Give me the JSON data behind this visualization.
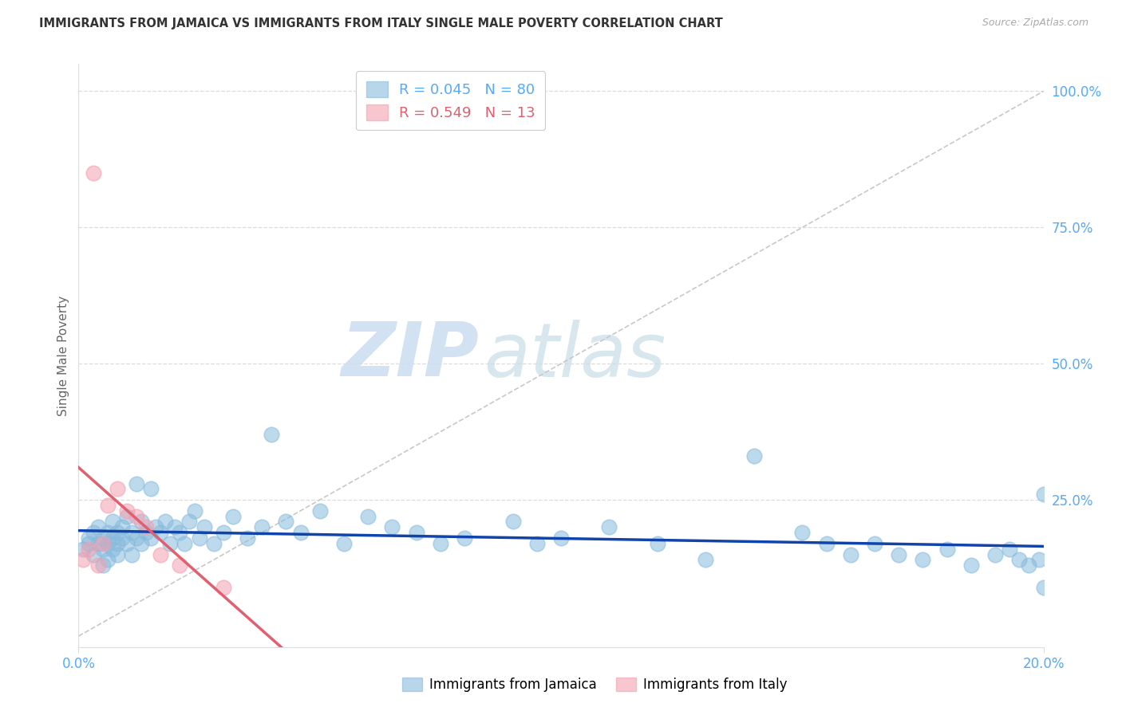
{
  "title": "IMMIGRANTS FROM JAMAICA VS IMMIGRANTS FROM ITALY SINGLE MALE POVERTY CORRELATION CHART",
  "source": "Source: ZipAtlas.com",
  "ylabel": "Single Male Poverty",
  "xlim": [
    0.0,
    0.2
  ],
  "ylim": [
    -0.02,
    1.05
  ],
  "watermark_zip": "ZIP",
  "watermark_atlas": "atlas",
  "legend_jamaica_R": 0.045,
  "legend_jamaica_N": 80,
  "legend_italy_R": 0.549,
  "legend_italy_N": 13,
  "jamaica_color": "#88bbdd",
  "italy_color": "#f4a0b0",
  "jamaica_line_color": "#1144aa",
  "italy_line_color": "#e06070",
  "diagonal_color": "#c8c8c8",
  "grid_color": "#dddddd",
  "right_tick_color": "#55aaff",
  "xtick_color": "#55aaff",
  "jamaica_x": [
    0.001,
    0.002,
    0.002,
    0.003,
    0.003,
    0.004,
    0.004,
    0.005,
    0.005,
    0.005,
    0.006,
    0.006,
    0.006,
    0.007,
    0.007,
    0.007,
    0.008,
    0.008,
    0.008,
    0.009,
    0.009,
    0.01,
    0.01,
    0.011,
    0.011,
    0.012,
    0.012,
    0.013,
    0.013,
    0.014,
    0.015,
    0.015,
    0.016,
    0.017,
    0.018,
    0.019,
    0.02,
    0.021,
    0.022,
    0.023,
    0.024,
    0.025,
    0.026,
    0.028,
    0.03,
    0.032,
    0.035,
    0.038,
    0.04,
    0.043,
    0.046,
    0.05,
    0.055,
    0.06,
    0.065,
    0.07,
    0.075,
    0.08,
    0.09,
    0.095,
    0.1,
    0.11,
    0.12,
    0.13,
    0.14,
    0.15,
    0.155,
    0.16,
    0.165,
    0.17,
    0.175,
    0.18,
    0.185,
    0.19,
    0.193,
    0.195,
    0.197,
    0.199,
    0.2,
    0.2
  ],
  "jamaica_y": [
    0.16,
    0.18,
    0.17,
    0.19,
    0.15,
    0.2,
    0.17,
    0.18,
    0.13,
    0.16,
    0.19,
    0.17,
    0.14,
    0.18,
    0.16,
    0.21,
    0.17,
    0.19,
    0.15,
    0.18,
    0.2,
    0.17,
    0.22,
    0.19,
    0.15,
    0.28,
    0.18,
    0.17,
    0.21,
    0.19,
    0.18,
    0.27,
    0.2,
    0.19,
    0.21,
    0.17,
    0.2,
    0.19,
    0.17,
    0.21,
    0.23,
    0.18,
    0.2,
    0.17,
    0.19,
    0.22,
    0.18,
    0.2,
    0.37,
    0.21,
    0.19,
    0.23,
    0.17,
    0.22,
    0.2,
    0.19,
    0.17,
    0.18,
    0.21,
    0.17,
    0.18,
    0.2,
    0.17,
    0.14,
    0.33,
    0.19,
    0.17,
    0.15,
    0.17,
    0.15,
    0.14,
    0.16,
    0.13,
    0.15,
    0.16,
    0.14,
    0.13,
    0.14,
    0.26,
    0.09
  ],
  "italy_x": [
    0.001,
    0.002,
    0.003,
    0.004,
    0.005,
    0.006,
    0.008,
    0.01,
    0.012,
    0.014,
    0.017,
    0.021,
    0.03
  ],
  "italy_y": [
    0.14,
    0.16,
    0.85,
    0.13,
    0.17,
    0.24,
    0.27,
    0.23,
    0.22,
    0.2,
    0.15,
    0.13,
    0.09
  ]
}
